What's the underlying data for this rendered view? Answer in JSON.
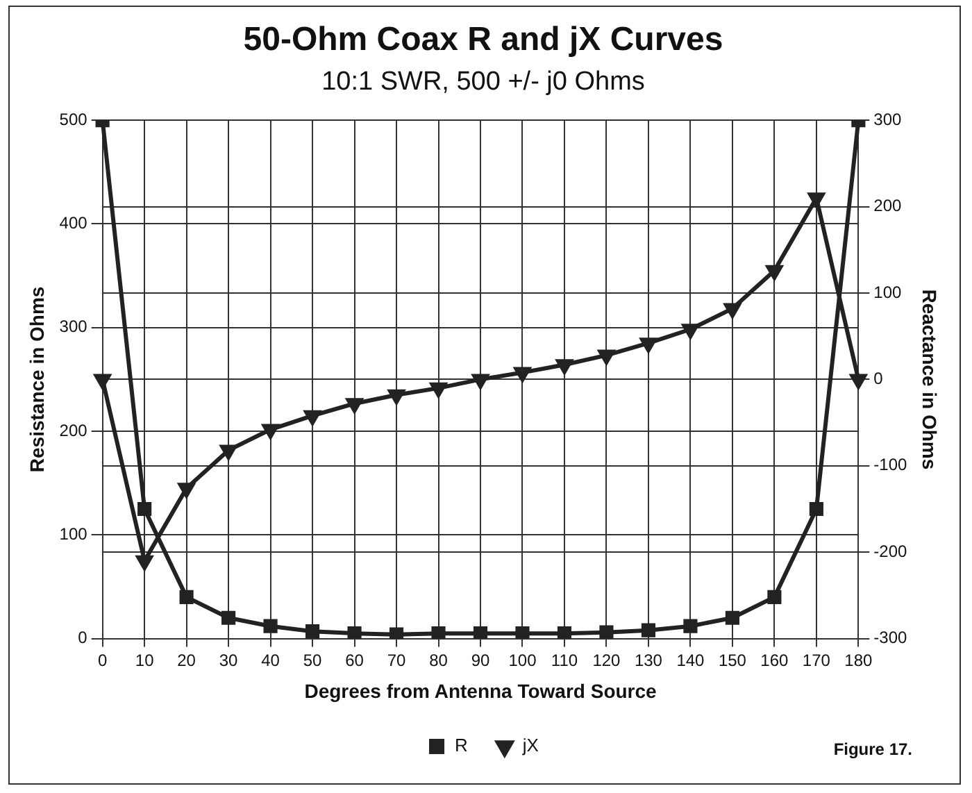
{
  "chart_data": {
    "type": "line",
    "title": "50-Ohm Coax R and jX Curves",
    "subtitle": "10:1 SWR, 500 +/- j0 Ohms",
    "xlabel": "Degrees from Antenna Toward Source",
    "ylabel": "Resistance in Ohms",
    "y2label": "Reactance in Ohms",
    "categories": [
      "0",
      "10",
      "20",
      "30",
      "40",
      "50",
      "60",
      "70",
      "80",
      "90",
      "100",
      "110",
      "120",
      "130",
      "140",
      "150",
      "160",
      "170",
      "180"
    ],
    "series": [
      {
        "name": "R",
        "color": "#222222",
        "marker": "square",
        "values": [
          500,
          125,
          40,
          20,
          12,
          7,
          5,
          4,
          5,
          5,
          5,
          5,
          6,
          8,
          12,
          20,
          40,
          125,
          500
        ]
      },
      {
        "name": "jX",
        "color": "#222222",
        "marker": "triangle",
        "axis": "y2",
        "values": [
          0,
          -210,
          -126,
          -82,
          -58,
          -42,
          -28,
          -18,
          -10,
          0,
          8,
          17,
          28,
          42,
          58,
          82,
          126,
          210,
          0
        ]
      }
    ],
    "ylim": [
      0,
      500
    ],
    "yticks": [
      0,
      100,
      200,
      300,
      400,
      500
    ],
    "y2lim": [
      -300,
      300
    ],
    "y2ticks": [
      -300,
      -200,
      -100,
      0,
      100,
      200,
      300
    ],
    "grid": true,
    "legend": "bottom",
    "line_style": "solid",
    "annotations": [
      "Figure 17."
    ]
  }
}
